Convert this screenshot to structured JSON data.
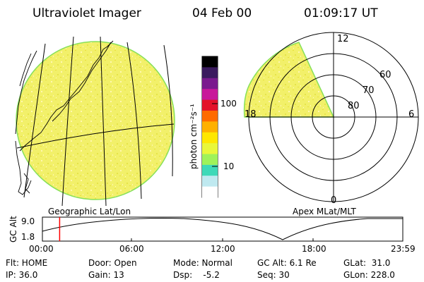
{
  "header": {
    "instrument": "Ultraviolet Imager",
    "date": "04 Feb 00",
    "time": "01:09:17 UT"
  },
  "geo_panel": {
    "caption": "Geographic Lat/Lon",
    "image_fill": "#f2f06a"
  },
  "colorbar": {
    "unit_label": "photon cm⁻²s⁻¹",
    "tick_labels": [
      "100",
      "10"
    ],
    "scale": "log",
    "colors": [
      "#000000",
      "#3a1a5e",
      "#7a1a8e",
      "#c8189a",
      "#e3122a",
      "#ff6a00",
      "#ffb000",
      "#ffe700",
      "#e9f73a",
      "#9ff25a",
      "#3ed9b8",
      "#bfe9f0",
      "#ffffff"
    ]
  },
  "polar_panel": {
    "caption": "Apex MLat/MLT",
    "mlt_labels": {
      "top": "12",
      "left": "18",
      "right": "6",
      "bottom": "0"
    },
    "mlat_labels": [
      "60",
      "70",
      "80"
    ],
    "image_fill": "#f2f06a"
  },
  "altitude_plot": {
    "ylabel": "GC Alt",
    "y_ticks": [
      "9.0",
      "1.8"
    ],
    "x_ticks": [
      "00:00",
      "06:00",
      "12:00",
      "18:00",
      "23:59"
    ],
    "current_marker_time": "01:09",
    "marker_color": "#ff0000"
  },
  "status": {
    "row1": {
      "flt": "Flt: HOME",
      "door": "Door: Open",
      "mode": "Mode: Normal",
      "gcalt": "GC Alt: 6.1 Re",
      "glat": "GLat:  31.0"
    },
    "row2": {
      "ip": "IP: 36.0",
      "gain": "Gain: 13",
      "dsp": "Dsp:    -5.2",
      "seq": "Seq: 30",
      "glon": "GLon: 228.0"
    }
  }
}
